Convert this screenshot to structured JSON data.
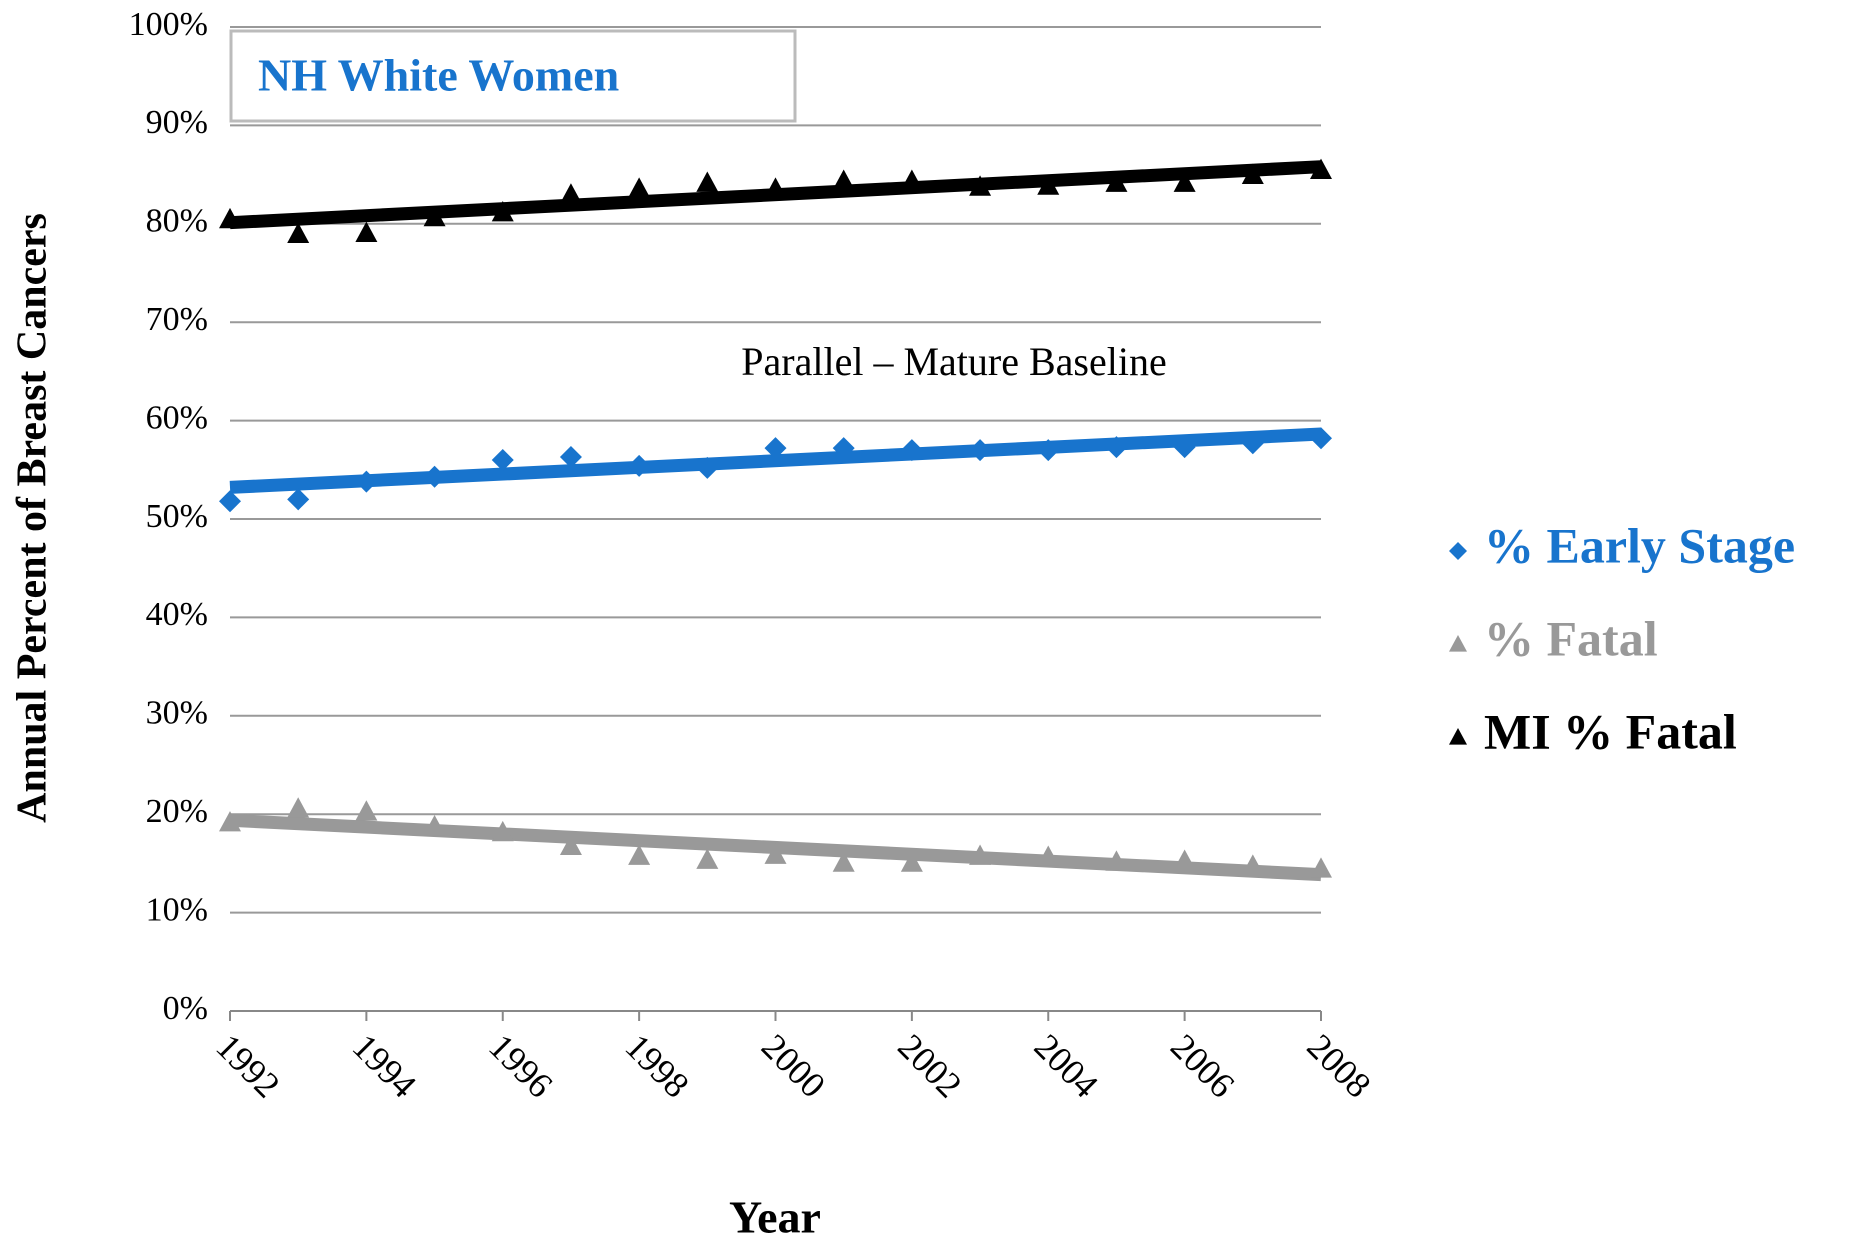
{
  "chart_data": {
    "type": "scatter",
    "label_box": "NH White Women",
    "annotation": "Parallel – Mature Baseline",
    "x_label": "Year",
    "y_label": "Annual Percent of Breast Cancers",
    "x": [
      1992,
      1993,
      1994,
      1995,
      1996,
      1997,
      1998,
      1999,
      2000,
      2001,
      2002,
      2003,
      2004,
      2005,
      2006,
      2007,
      2008
    ],
    "series": [
      {
        "name": "% Early Stage",
        "color": "#1874cd",
        "marker": "diamond",
        "trendline": true,
        "values": [
          51.8,
          52,
          53.8,
          54.3,
          56,
          56.3,
          55.4,
          55.2,
          57.2,
          57.2,
          57,
          57,
          57,
          57.3,
          57.3,
          57.7,
          58.2
        ]
      },
      {
        "name": "% Fatal",
        "color": "#999999",
        "marker": "triangle",
        "trendline": true,
        "values": [
          19.2,
          20.6,
          20.3,
          18.8,
          18.2,
          16.8,
          15.8,
          15.4,
          15.9,
          15.1,
          15.1,
          15.8,
          15.7,
          15.2,
          15.3,
          14.8,
          14.5
        ]
      },
      {
        "name": "MI % Fatal",
        "color": "#000000",
        "marker": "triangle",
        "trendline": true,
        "values": [
          80.5,
          79,
          79.1,
          80.7,
          81.2,
          83,
          83.6,
          84.2,
          83.6,
          84.4,
          84.4,
          83.8,
          83.9,
          84.2,
          84.2,
          85,
          85.5
        ]
      }
    ],
    "xlim": [
      1992,
      2008
    ],
    "xticks": [
      1992,
      1994,
      1996,
      1998,
      2000,
      2002,
      2004,
      2006,
      2008
    ],
    "ylim": [
      0,
      100
    ],
    "yticks": [
      {
        "value": 0,
        "label": "0%"
      },
      {
        "value": 10,
        "label": "10%"
      },
      {
        "value": 20,
        "label": "20%"
      },
      {
        "value": 30,
        "label": "30%"
      },
      {
        "value": 40,
        "label": "40%"
      },
      {
        "value": 50,
        "label": "50%"
      },
      {
        "value": 60,
        "label": "60%"
      },
      {
        "value": 70,
        "label": "70%"
      },
      {
        "value": 80,
        "label": "80%"
      },
      {
        "value": 90,
        "label": "90%"
      },
      {
        "value": 100,
        "label": "100%"
      }
    ],
    "grid": true,
    "legend": "right"
  }
}
